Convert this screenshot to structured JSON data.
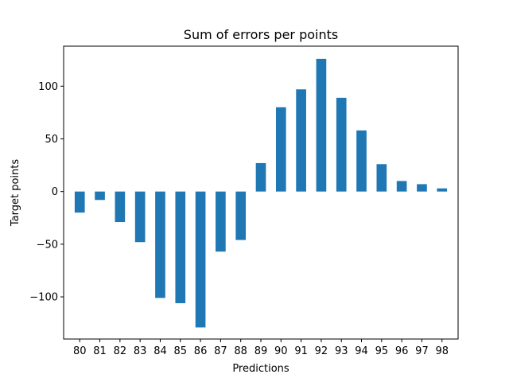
{
  "chart_data": {
    "type": "bar",
    "title": "Sum of errors per points",
    "xlabel": "Predictions",
    "ylabel": "Target points",
    "categories": [
      "80",
      "81",
      "82",
      "83",
      "84",
      "85",
      "86",
      "87",
      "88",
      "89",
      "90",
      "91",
      "92",
      "93",
      "94",
      "95",
      "96",
      "97",
      "98"
    ],
    "values": [
      -20,
      -8,
      -29,
      -48,
      -101,
      -106,
      -129,
      -57,
      -46,
      27,
      80,
      97,
      126,
      89,
      58,
      26,
      10,
      7,
      3
    ],
    "ylim": [
      -140,
      138
    ],
    "yticks": [
      -100,
      -50,
      0,
      50,
      100
    ],
    "ytick_labels": [
      "−100",
      "−50",
      "0",
      "50",
      "100"
    ],
    "bar_color": "#1f77b4",
    "grid": false
  }
}
